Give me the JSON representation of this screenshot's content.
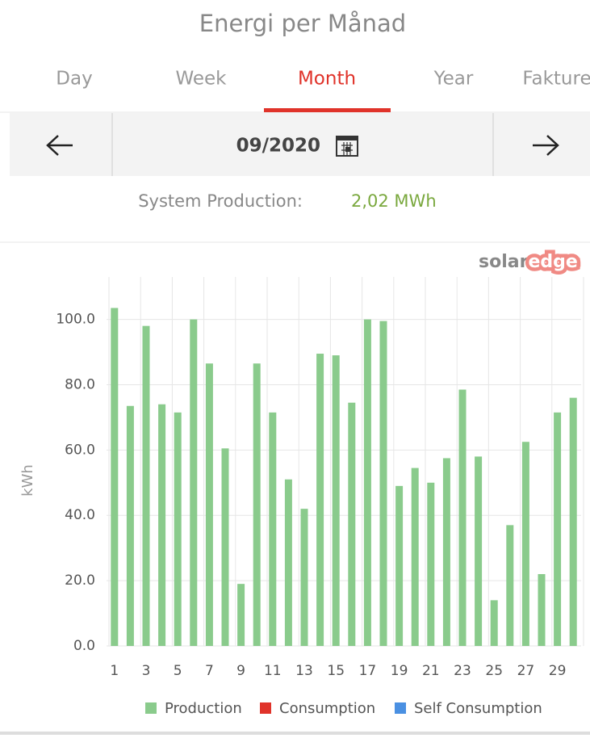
{
  "header": {
    "title": "Energi per Månad"
  },
  "tabs": [
    "Day",
    "Week",
    "Month",
    "Year",
    "Fakture"
  ],
  "date": "09/2020",
  "summary": {
    "label": "System Production:",
    "value": "2,02 MWh"
  },
  "logo": {
    "first": "solar",
    "second": "edge"
  },
  "chart_data": {
    "type": "bar",
    "ylabel": "kWh",
    "categories": [
      "1",
      null,
      "3",
      null,
      "5",
      null,
      "7",
      null,
      "9",
      null,
      "11",
      null,
      "13",
      null,
      "15",
      null,
      "17",
      null,
      "19",
      null,
      "21",
      null,
      "23",
      null,
      "25",
      null,
      "27",
      null,
      "29",
      null
    ],
    "series": [
      {
        "name": "Production",
        "color": "#8acb8c",
        "values": [
          103.5,
          73.5,
          98,
          74,
          71.5,
          100,
          86.5,
          60.5,
          19,
          86.5,
          71.5,
          51,
          42,
          89.5,
          89,
          74.5,
          100,
          99.5,
          49,
          54.5,
          50,
          57.5,
          78.5,
          58,
          14,
          37,
          62.5,
          22,
          71.5,
          76
        ]
      },
      {
        "name": "Consumption",
        "color": "#e0332a"
      },
      {
        "name": "Self Consumption",
        "color": "#4a90e2"
      }
    ],
    "ylim": [
      0,
      113
    ],
    "yticks": [
      {
        "value": 0,
        "label": "0.0"
      },
      {
        "value": 20,
        "label": "20.0"
      },
      {
        "value": 40,
        "label": "40.0"
      },
      {
        "value": 60,
        "label": "60.0"
      },
      {
        "value": 80,
        "label": "80.0"
      },
      {
        "value": 100,
        "label": "100.0"
      }
    ],
    "grid": true
  }
}
